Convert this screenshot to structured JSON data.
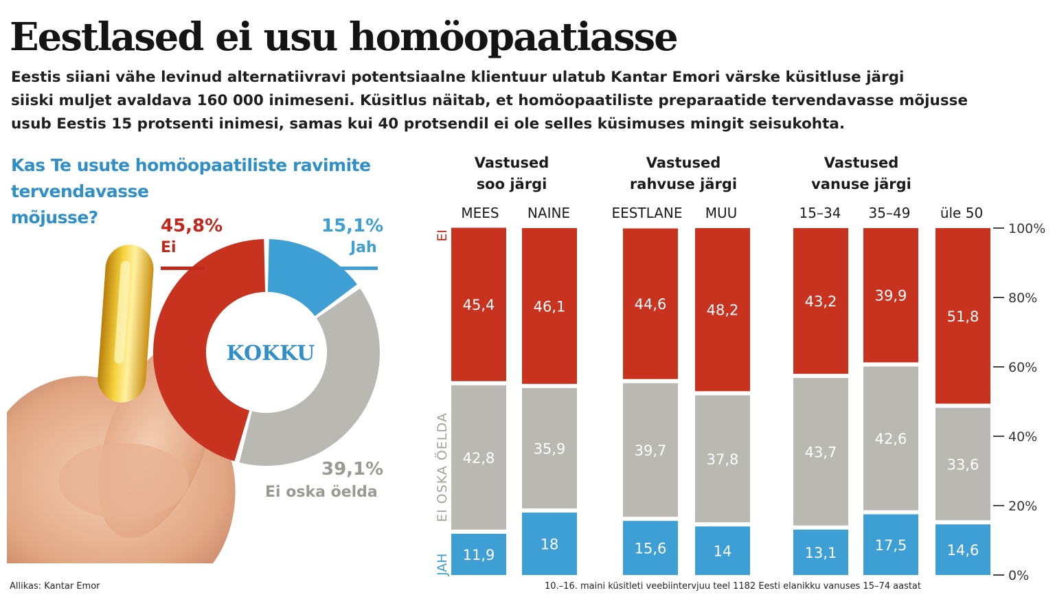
{
  "title": "Eestlased ei usu homöopaatiasse",
  "intro": [
    "Eestis siiani vähe levinud alternatiivravi potentsiaalne klientuur ulatub Kantar Emori värske küsitluse järgi",
    "siiski muljet avaldava 160 000 inimeseni. Küsitlus näitab, et homöopaatiliste preparaatide tervendavasse mõjusse",
    "usub Eestis 15 protsenti inimesi, samas kui 40 protsendil ei ole selles küsimuses mingit seisukohta."
  ],
  "question": [
    "Kas Te usute homöopaatiliste ravimite",
    "tervendavasse",
    "mõjusse?"
  ],
  "colors": {
    "ei": "#c7331f",
    "jah": "#3e9fd5",
    "eos": "#b9b8b2",
    "donut_center": "#ffffff"
  },
  "donut": {
    "center_label": "KOKKU",
    "ei": {
      "pct": "45,8%",
      "label": "Ei"
    },
    "jah": {
      "pct": "15,1%",
      "label": "Jah"
    },
    "eos": {
      "pct": "39,1%",
      "label": "Ei oska öelda"
    }
  },
  "groups": [
    {
      "title": [
        "Vastused",
        "soo järgi"
      ]
    },
    {
      "title": [
        "Vastused",
        "rahvuse järgi"
      ]
    },
    {
      "title": [
        "Vastused",
        "vanuse järgi"
      ]
    }
  ],
  "chart_data": {
    "type": "bar",
    "stacked": true,
    "categories": [
      "MEES",
      "NAINE",
      "EESTLANE",
      "MUU",
      "15–34",
      "35–49",
      "üle 50"
    ],
    "series": [
      {
        "name": "JAH",
        "values": [
          11.9,
          18,
          15.6,
          14,
          13.1,
          17.5,
          14.6
        ],
        "labels": [
          "11,9",
          "18",
          "15,6",
          "14",
          "13,1",
          "17,5",
          "14,6"
        ]
      },
      {
        "name": "EI OSKA ÖELDA",
        "values": [
          42.8,
          35.9,
          39.7,
          37.8,
          43.7,
          42.6,
          33.6
        ],
        "labels": [
          "42,8",
          "35,9",
          "39,7",
          "37,8",
          "43,7",
          "42,6",
          "33,6"
        ]
      },
      {
        "name": "EI",
        "values": [
          45.4,
          46.1,
          44.6,
          48.2,
          43.2,
          39.9,
          51.8
        ],
        "labels": [
          "45,4",
          "46,1",
          "44,6",
          "48,2",
          "43,2",
          "39,9",
          "51,8"
        ]
      }
    ],
    "ylim": [
      0,
      100
    ],
    "yticks": [
      "0%",
      "20%",
      "40%",
      "60%",
      "80%",
      "100%"
    ],
    "pie": {
      "type": "pie",
      "labels": [
        "Ei",
        "Jah",
        "Ei oska öelda"
      ],
      "values": [
        45.8,
        15.1,
        39.1
      ]
    }
  },
  "source_left": "Allikas: Kantar Emor",
  "source_right": "10.–16. maini küsitleti veebiintervjuu teel 1182 Eesti elanikku vanuses 15–74 aastat"
}
